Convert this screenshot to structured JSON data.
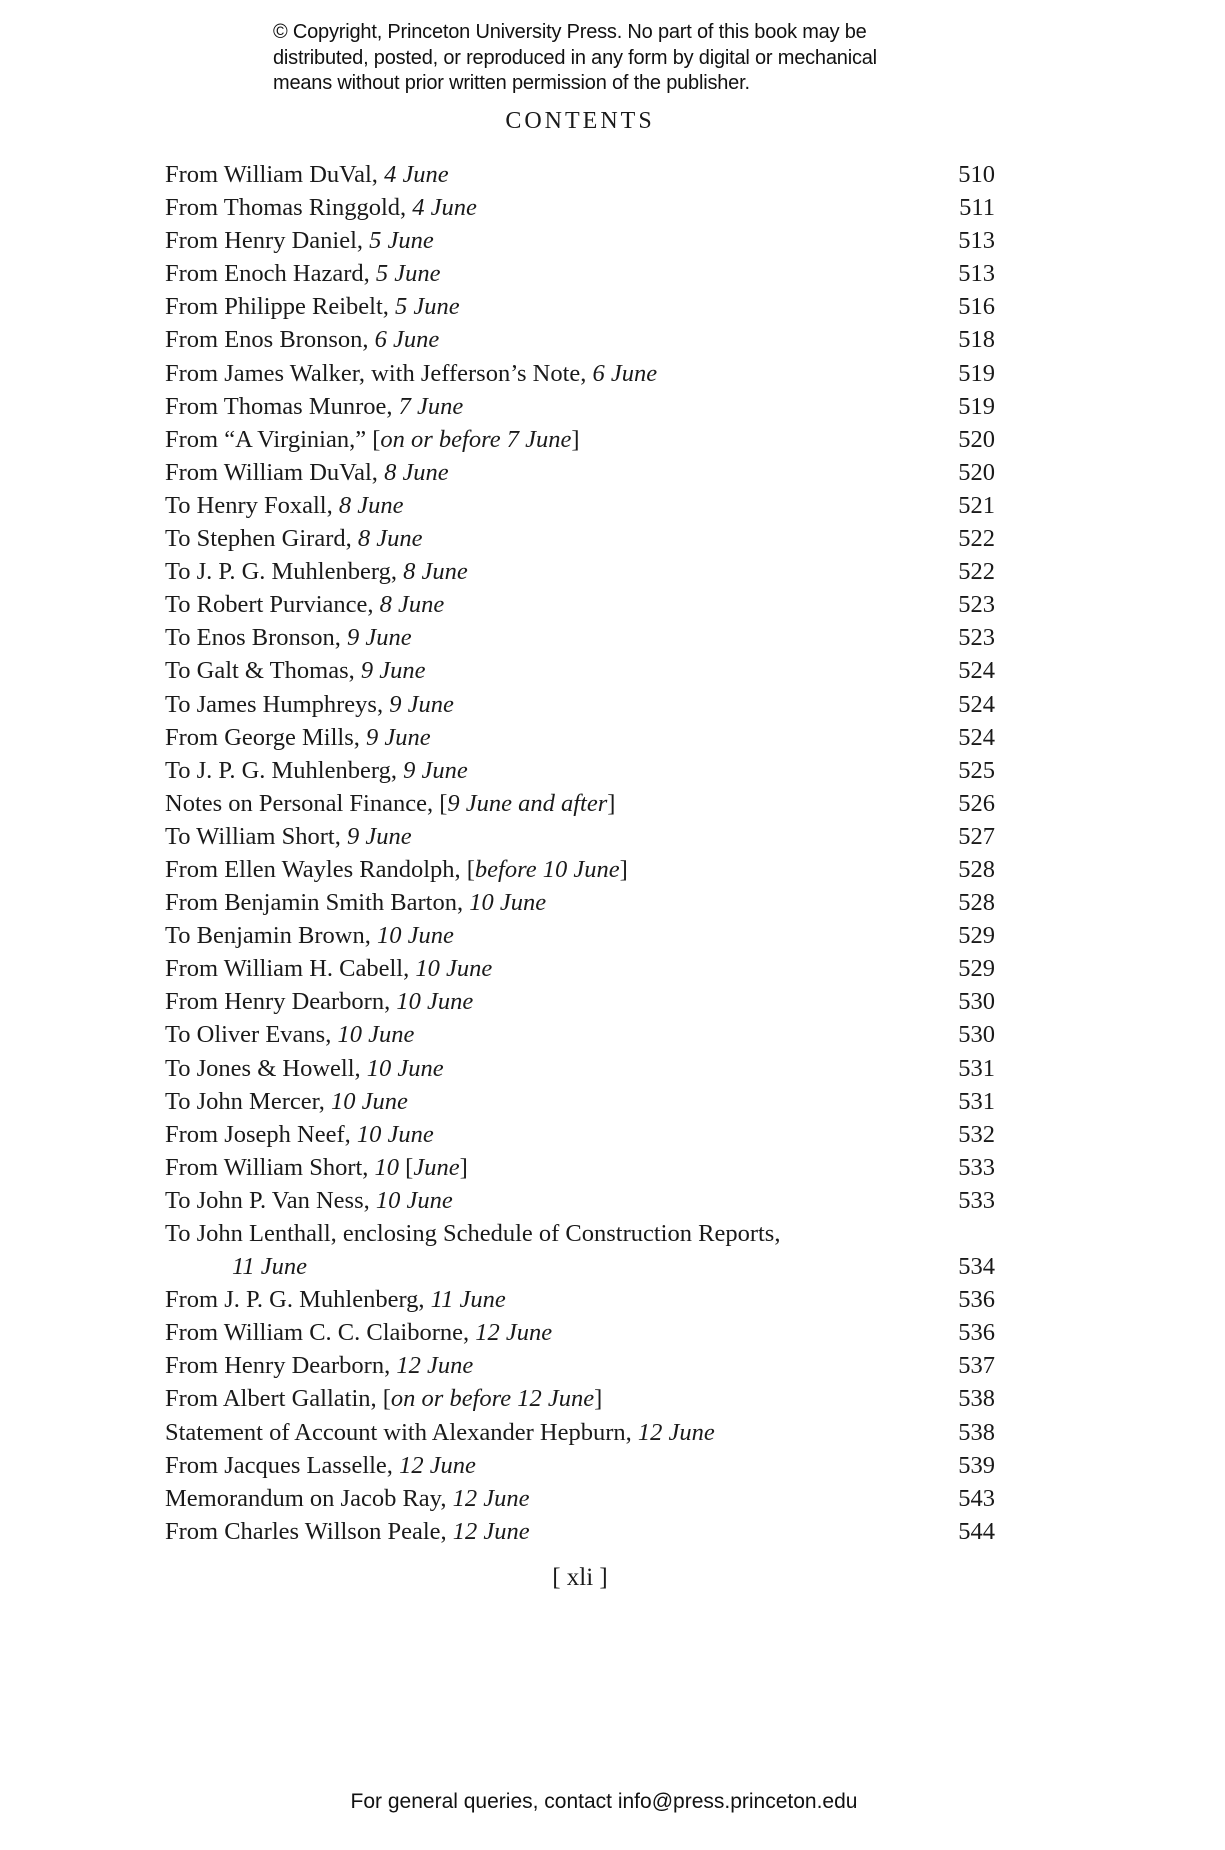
{
  "header": {
    "copyright_lines": [
      "© Copyright, Princeton University Press. No part of this book may be",
      "distributed, posted, or reproduced in any form by digital or mechanical",
      "means without prior written permission of the publisher."
    ]
  },
  "title": "CONTENTS",
  "entries": [
    {
      "seg": [
        [
          "From William DuVal, ",
          0
        ],
        [
          "4 June",
          1
        ]
      ],
      "page": "510"
    },
    {
      "seg": [
        [
          "From Thomas Ringgold, ",
          0
        ],
        [
          "4 June",
          1
        ]
      ],
      "page": "511"
    },
    {
      "seg": [
        [
          "From Henry Daniel, ",
          0
        ],
        [
          "5 June",
          1
        ]
      ],
      "page": "513"
    },
    {
      "seg": [
        [
          "From Enoch Hazard, ",
          0
        ],
        [
          "5 June",
          1
        ]
      ],
      "page": "513"
    },
    {
      "seg": [
        [
          "From Philippe Reibelt, ",
          0
        ],
        [
          "5 June",
          1
        ]
      ],
      "page": "516"
    },
    {
      "seg": [
        [
          "From Enos Bronson, ",
          0
        ],
        [
          "6 June",
          1
        ]
      ],
      "page": "518"
    },
    {
      "seg": [
        [
          "From James Walker, with Jefferson’s Note, ",
          0
        ],
        [
          "6 June",
          1
        ]
      ],
      "page": "519"
    },
    {
      "seg": [
        [
          "From Thomas Munroe, ",
          0
        ],
        [
          "7 June",
          1
        ]
      ],
      "page": "519"
    },
    {
      "seg": [
        [
          "From “A Virginian,” [",
          0
        ],
        [
          "on or before 7 June",
          1
        ],
        [
          "]",
          0
        ]
      ],
      "page": "520"
    },
    {
      "seg": [
        [
          "From William DuVal, ",
          0
        ],
        [
          "8 June",
          1
        ]
      ],
      "page": "520"
    },
    {
      "seg": [
        [
          "To Henry Foxall, ",
          0
        ],
        [
          "8 June",
          1
        ]
      ],
      "page": "521"
    },
    {
      "seg": [
        [
          "To Stephen Girard, ",
          0
        ],
        [
          "8 June",
          1
        ]
      ],
      "page": "522"
    },
    {
      "seg": [
        [
          "To J. P. G. Muhlenberg, ",
          0
        ],
        [
          "8 June",
          1
        ]
      ],
      "page": "522"
    },
    {
      "seg": [
        [
          "To Robert Purviance, ",
          0
        ],
        [
          "8 June",
          1
        ]
      ],
      "page": "523"
    },
    {
      "seg": [
        [
          "To Enos Bronson, ",
          0
        ],
        [
          "9 June",
          1
        ]
      ],
      "page": "523"
    },
    {
      "seg": [
        [
          "To Galt & Thomas, ",
          0
        ],
        [
          "9 June",
          1
        ]
      ],
      "page": "524"
    },
    {
      "seg": [
        [
          "To James Humphreys, ",
          0
        ],
        [
          "9 June",
          1
        ]
      ],
      "page": "524"
    },
    {
      "seg": [
        [
          "From George Mills, ",
          0
        ],
        [
          "9 June",
          1
        ]
      ],
      "page": "524"
    },
    {
      "seg": [
        [
          "To J. P. G. Muhlenberg, ",
          0
        ],
        [
          "9 June",
          1
        ]
      ],
      "page": "525"
    },
    {
      "seg": [
        [
          "Notes on Personal Finance, [",
          0
        ],
        [
          "9 June and after",
          1
        ],
        [
          "]",
          0
        ]
      ],
      "page": "526"
    },
    {
      "seg": [
        [
          "To William Short, ",
          0
        ],
        [
          "9 June",
          1
        ]
      ],
      "page": "527"
    },
    {
      "seg": [
        [
          "From Ellen Wayles Randolph, [",
          0
        ],
        [
          "before 10 June",
          1
        ],
        [
          "]",
          0
        ]
      ],
      "page": "528"
    },
    {
      "seg": [
        [
          "From Benjamin Smith Barton, ",
          0
        ],
        [
          "10 June",
          1
        ]
      ],
      "page": "528"
    },
    {
      "seg": [
        [
          "To Benjamin Brown, ",
          0
        ],
        [
          "10 June",
          1
        ]
      ],
      "page": "529"
    },
    {
      "seg": [
        [
          "From William H. Cabell, ",
          0
        ],
        [
          "10 June",
          1
        ]
      ],
      "page": "529"
    },
    {
      "seg": [
        [
          "From Henry Dearborn, ",
          0
        ],
        [
          "10 June",
          1
        ]
      ],
      "page": "530"
    },
    {
      "seg": [
        [
          "To Oliver Evans, ",
          0
        ],
        [
          "10 June",
          1
        ]
      ],
      "page": "530"
    },
    {
      "seg": [
        [
          "To Jones & Howell, ",
          0
        ],
        [
          "10 June",
          1
        ]
      ],
      "page": "531"
    },
    {
      "seg": [
        [
          "To John Mercer, ",
          0
        ],
        [
          "10 June",
          1
        ]
      ],
      "page": "531"
    },
    {
      "seg": [
        [
          "From Joseph Neef, ",
          0
        ],
        [
          "10 June",
          1
        ]
      ],
      "page": "532"
    },
    {
      "seg": [
        [
          "From William Short, ",
          0
        ],
        [
          "10",
          1
        ],
        [
          " [",
          0
        ],
        [
          "June",
          1
        ],
        [
          "]",
          0
        ]
      ],
      "page": "533"
    },
    {
      "seg": [
        [
          "To John P. Van Ness, ",
          0
        ],
        [
          "10 June",
          1
        ]
      ],
      "page": "533"
    },
    {
      "seg": [
        [
          "To John Lenthall, enclosing Schedule of Construction Reports,",
          0
        ]
      ],
      "cont": [
        [
          "11 June",
          1
        ]
      ],
      "page": "534"
    },
    {
      "seg": [
        [
          "From J. P. G. Muhlenberg, ",
          0
        ],
        [
          "11 June",
          1
        ]
      ],
      "page": "536"
    },
    {
      "seg": [
        [
          "From William C. C. Claiborne, ",
          0
        ],
        [
          "12 June",
          1
        ]
      ],
      "page": "536"
    },
    {
      "seg": [
        [
          "From Henry Dearborn, ",
          0
        ],
        [
          "12 June",
          1
        ]
      ],
      "page": "537"
    },
    {
      "seg": [
        [
          "From Albert Gallatin, [",
          0
        ],
        [
          "on or before 12 June",
          1
        ],
        [
          "]",
          0
        ]
      ],
      "page": "538"
    },
    {
      "seg": [
        [
          "Statement of Account with Alexander Hepburn, ",
          0
        ],
        [
          "12 June",
          1
        ]
      ],
      "page": "538"
    },
    {
      "seg": [
        [
          "From Jacques Lasselle, ",
          0
        ],
        [
          "12 June",
          1
        ]
      ],
      "page": "539"
    },
    {
      "seg": [
        [
          "Memorandum on Jacob Ray, ",
          0
        ],
        [
          "12 June",
          1
        ]
      ],
      "page": "543"
    },
    {
      "seg": [
        [
          "From Charles Willson Peale, ",
          0
        ],
        [
          "12 June",
          1
        ]
      ],
      "page": "544"
    }
  ],
  "page_number": "[ xli ]",
  "footer": "For general queries, contact info@press.princeton.edu"
}
